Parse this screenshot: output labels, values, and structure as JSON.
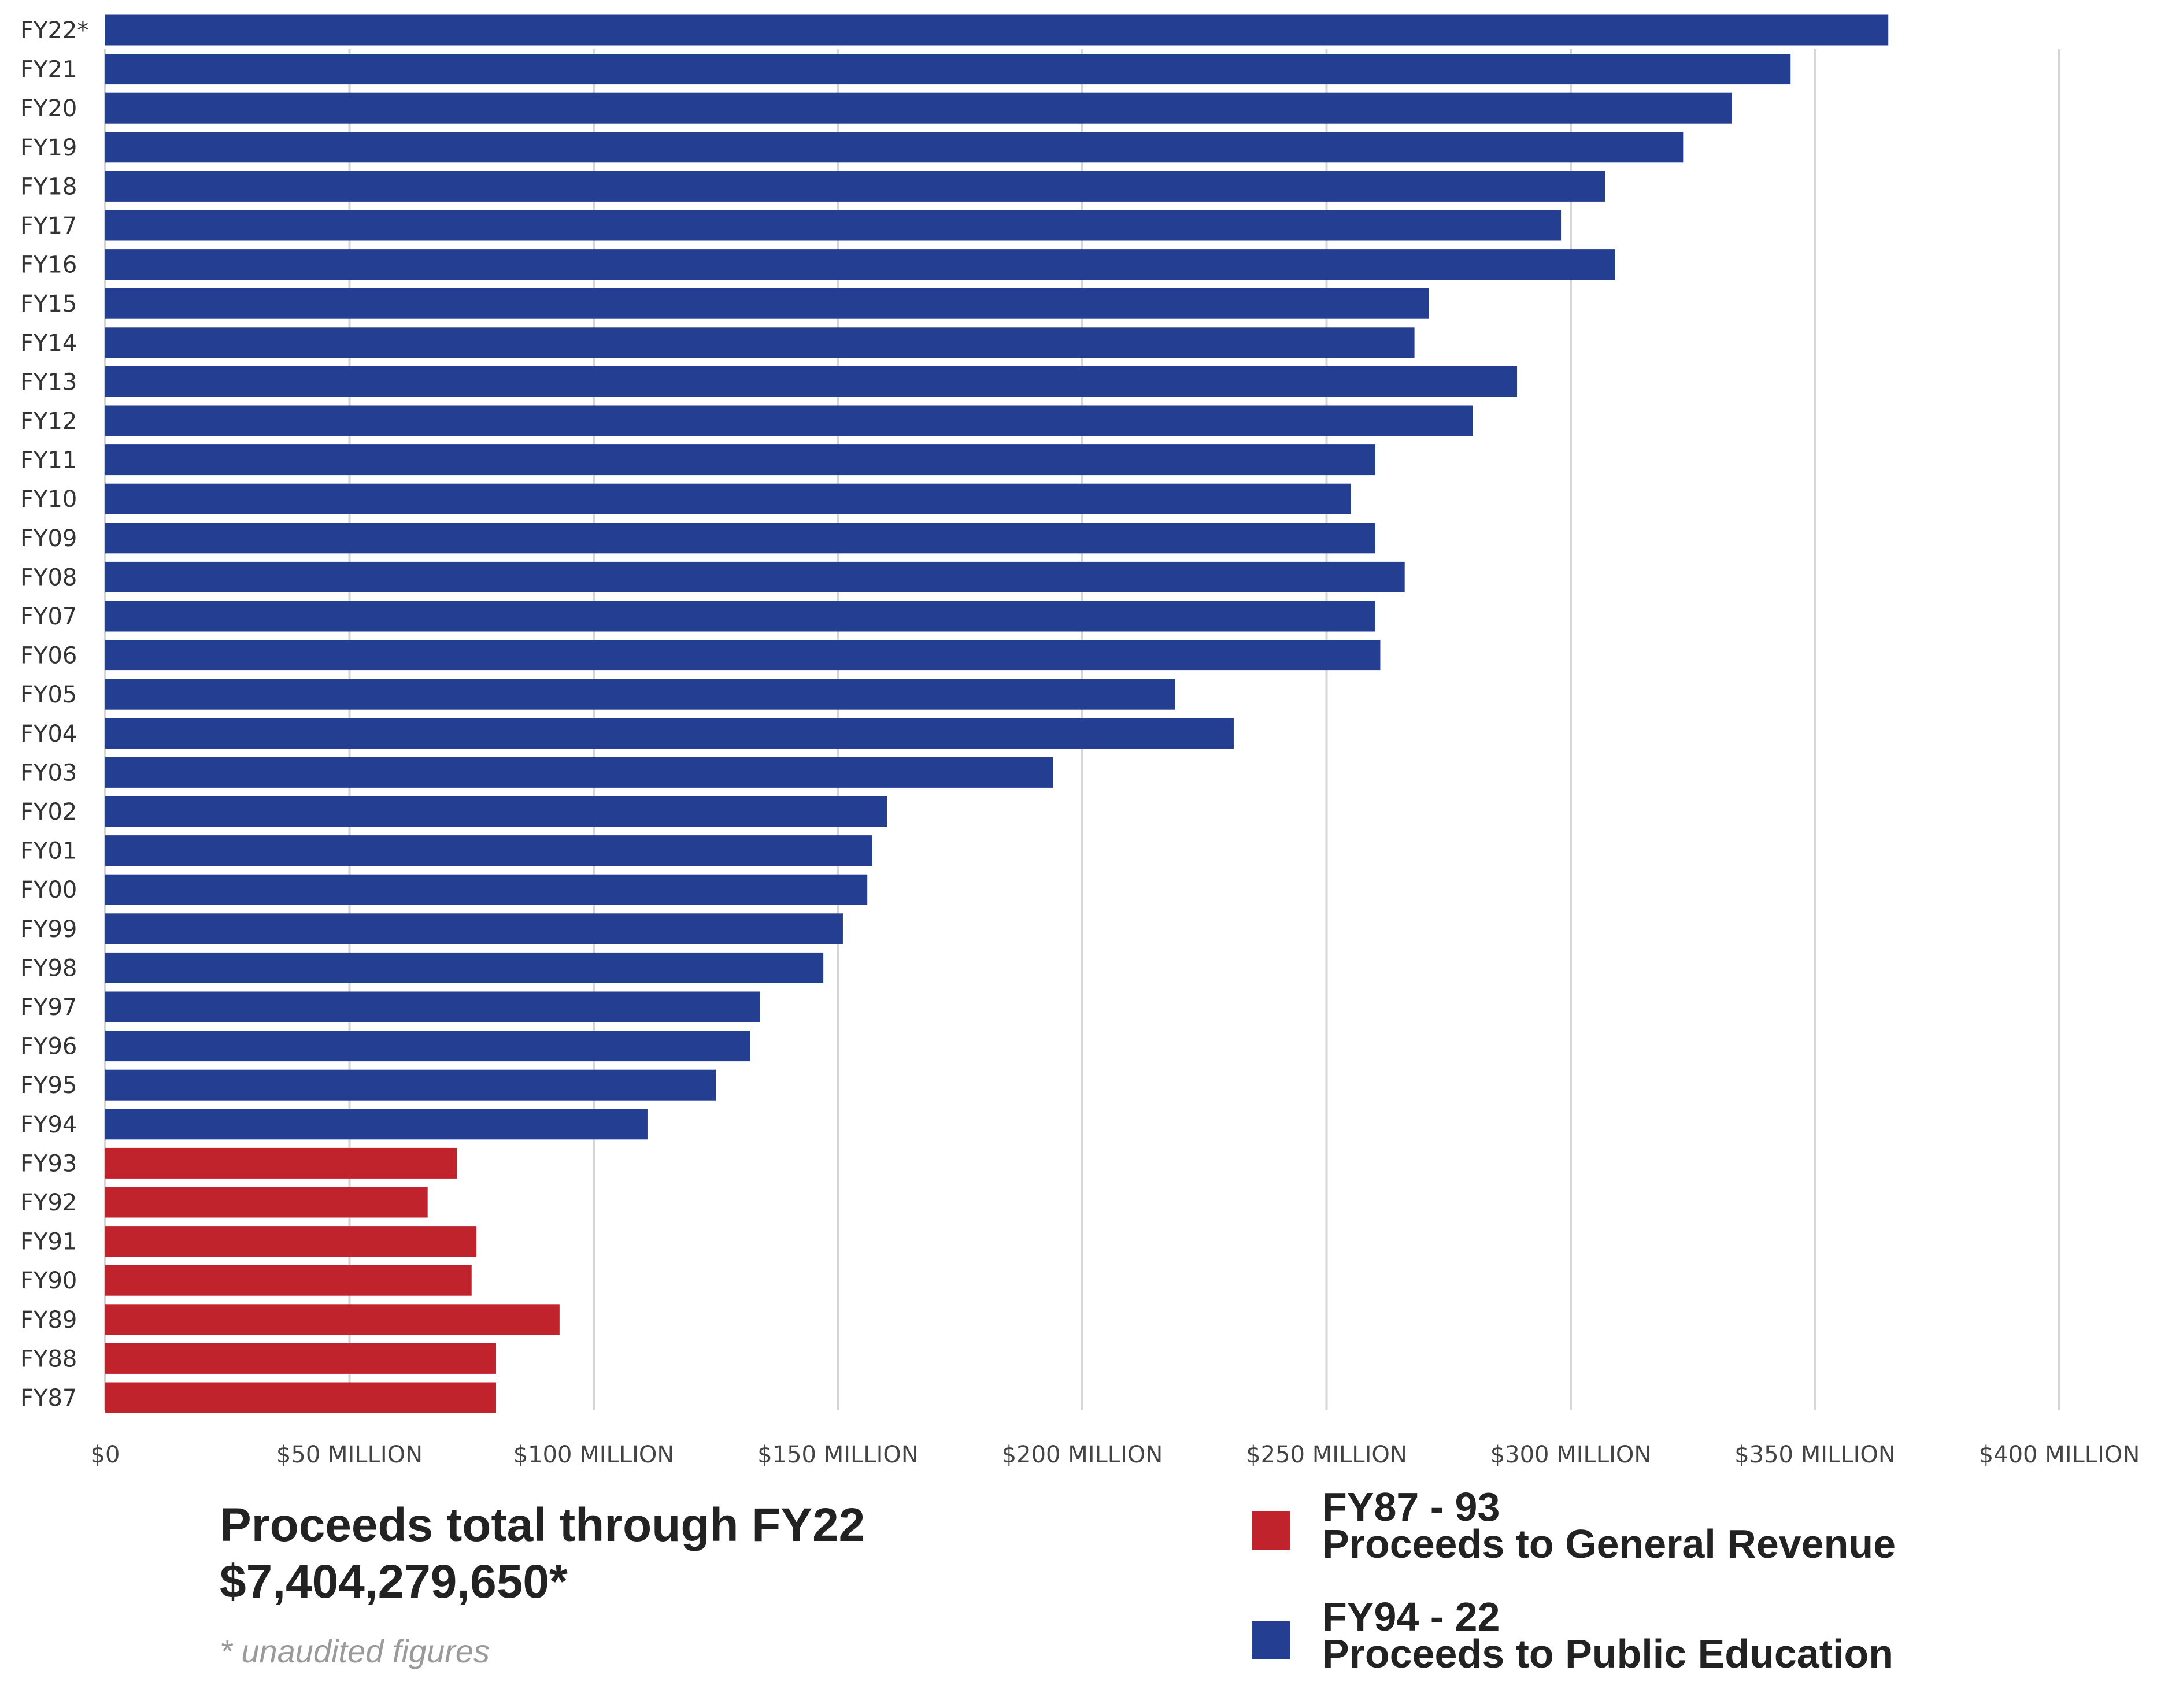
{
  "colors": {
    "general_revenue": "#c1232c",
    "public_education": "#243f91",
    "grid": "#d6d6d6"
  },
  "chart_data": {
    "type": "bar",
    "orientation": "horizontal",
    "categories": [
      "FY22*",
      "FY21",
      "FY20",
      "FY19",
      "FY18",
      "FY17",
      "FY16",
      "FY15",
      "FY14",
      "FY13",
      "FY12",
      "FY11",
      "FY10",
      "FY09",
      "FY08",
      "FY07",
      "FY06",
      "FY05",
      "FY04",
      "FY03",
      "FY02",
      "FY01",
      "FY00",
      "FY99",
      "FY98",
      "FY97",
      "FY96",
      "FY95",
      "FY94",
      "FY93",
      "FY92",
      "FY91",
      "FY90",
      "FY89",
      "FY88",
      "FY87"
    ],
    "values": [
      365,
      345,
      333,
      323,
      307,
      298,
      309,
      271,
      268,
      289,
      280,
      260,
      255,
      260,
      266,
      260,
      261,
      219,
      231,
      194,
      160,
      157,
      156,
      151,
      147,
      134,
      132,
      125,
      111,
      72,
      66,
      76,
      75,
      93,
      80,
      80
    ],
    "bar_groups": [
      "education",
      "education",
      "education",
      "education",
      "education",
      "education",
      "education",
      "education",
      "education",
      "education",
      "education",
      "education",
      "education",
      "education",
      "education",
      "education",
      "education",
      "education",
      "education",
      "education",
      "education",
      "education",
      "education",
      "education",
      "education",
      "education",
      "education",
      "education",
      "education",
      "revenue",
      "revenue",
      "revenue",
      "revenue",
      "revenue",
      "revenue",
      "revenue"
    ],
    "xlim": [
      0,
      400
    ],
    "x_unit": "millions of dollars",
    "x_ticks": [
      0,
      50,
      100,
      150,
      200,
      250,
      300,
      350,
      400
    ],
    "x_tick_labels": [
      "$0",
      "$50 MILLION",
      "$100 MILLION",
      "$150 MILLION",
      "$200 MILLION",
      "$250 MILLION",
      "$300 MILLION",
      "$350 MILLION",
      "$400 MILLION"
    ],
    "grid": true,
    "legend_position": "bottom-right"
  },
  "summary": {
    "title_line1": "Proceeds total through FY22",
    "title_line2": "$7,404,279,650*",
    "footnote": "* unaudited figures"
  },
  "legend": {
    "items": [
      {
        "line1": "FY87 - 93",
        "line2": "Proceeds to General Revenue"
      },
      {
        "line1": "FY94 - 22",
        "line2": "Proceeds to Public Education"
      }
    ]
  }
}
